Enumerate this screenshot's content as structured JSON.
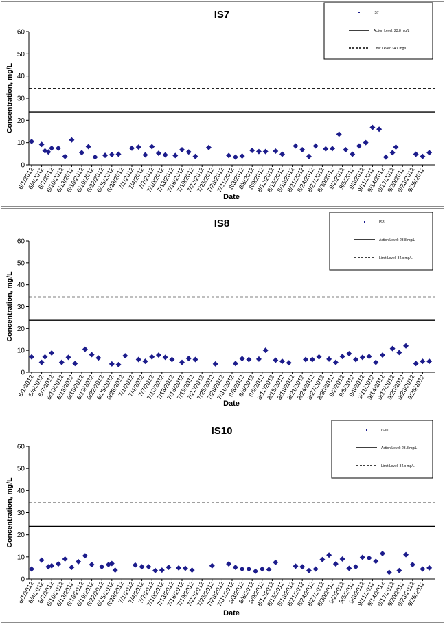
{
  "chart_data": [
    {
      "type": "scatter",
      "title": "IS7",
      "xlabel": "Date",
      "ylabel": "Concentration, mg/L",
      "ylim": [
        0,
        60
      ],
      "yticks": [
        "0",
        "10",
        "20",
        "30",
        "40",
        "50",
        "60"
      ],
      "grid": false,
      "legend_position": "top-right",
      "xtick_labels": [
        "6/1/2012",
        "6/4/2012",
        "6/7/2012",
        "6/10/2012",
        "6/13/2012",
        "6/16/2012",
        "6/19/2012",
        "6/22/2012",
        "6/25/2012",
        "6/28/2012",
        "7/1/2012",
        "7/4/2012",
        "7/7/2012",
        "7/10/2012",
        "7/13/2012",
        "7/16/2012",
        "7/19/2012",
        "7/22/2012",
        "7/25/2012",
        "7/28/2012",
        "7/31/2012",
        "8/3/2012",
        "8/6/2012",
        "8/9/2012",
        "8/12/2012",
        "8/15/2012",
        "8/18/2012",
        "8/21/2012",
        "8/24/2012",
        "8/27/2012",
        "8/30/2012",
        "9/2/2012",
        "9/5/2012",
        "9/8/2012",
        "9/11/2012",
        "9/14/2012",
        "9/17/2012",
        "9/20/2012",
        "9/23/2012",
        "9/26/2012"
      ],
      "series": [
        {
          "name": "IS7",
          "style": "marker",
          "color": "#1c1c8c",
          "x": [
            "2012-06-01",
            "2012-06-04",
            "2012-06-05",
            "2012-06-06",
            "2012-06-07",
            "2012-06-09",
            "2012-06-11",
            "2012-06-13",
            "2012-06-16",
            "2012-06-18",
            "2012-06-20",
            "2012-06-23",
            "2012-06-25",
            "2012-06-27",
            "2012-07-01",
            "2012-07-03",
            "2012-07-05",
            "2012-07-07",
            "2012-07-09",
            "2012-07-11",
            "2012-07-14",
            "2012-07-16",
            "2012-07-18",
            "2012-07-20",
            "2012-07-24",
            "2012-07-30",
            "2012-08-01",
            "2012-08-03",
            "2012-08-06",
            "2012-08-08",
            "2012-08-10",
            "2012-08-13",
            "2012-08-15",
            "2012-08-19",
            "2012-08-21",
            "2012-08-23",
            "2012-08-25",
            "2012-08-28",
            "2012-08-30",
            "2012-09-01",
            "2012-09-03",
            "2012-09-05",
            "2012-09-07",
            "2012-09-09",
            "2012-09-11",
            "2012-09-13",
            "2012-09-15",
            "2012-09-17",
            "2012-09-18",
            "2012-09-24",
            "2012-09-26",
            "2012-09-28"
          ],
          "y": [
            10.5,
            9.2,
            6.3,
            5.8,
            7.5,
            7.5,
            3.8,
            11.2,
            5.5,
            8.2,
            3.5,
            4.3,
            4.6,
            4.8,
            7.5,
            8.0,
            4.5,
            8.2,
            5.2,
            4.5,
            4.2,
            6.8,
            5.8,
            3.8,
            7.8,
            4.2,
            3.5,
            4.0,
            6.5,
            6.0,
            6.0,
            6.2,
            4.8,
            8.5,
            6.8,
            3.8,
            8.5,
            7.2,
            7.3,
            13.8,
            6.8,
            4.8,
            8.5,
            10.0,
            16.8,
            16.0,
            3.5,
            5.5,
            8.0,
            4.8,
            3.8,
            5.5
          ]
        },
        {
          "name": "Action Level: 23.8 mg/L",
          "style": "solid",
          "value": 23.8
        },
        {
          "name": "Limit Level: 34.x mg/L",
          "style": "dashed",
          "value": 34.4
        }
      ]
    },
    {
      "type": "scatter",
      "title": "IS8",
      "xlabel": "Date",
      "ylabel": "Concentration, mg/L",
      "ylim": [
        0,
        60
      ],
      "yticks": [
        "0",
        "10",
        "20",
        "30",
        "40",
        "50",
        "60"
      ],
      "grid": false,
      "legend_position": "top-right",
      "xtick_labels": [
        "6/1/2012",
        "6/4/2012",
        "6/7/2012",
        "6/10/2012",
        "6/13/2012",
        "6/16/2012",
        "6/19/2012",
        "6/22/2012",
        "6/25/2012",
        "6/28/2012",
        "7/1/2012",
        "7/4/2012",
        "7/7/2012",
        "7/10/2012",
        "7/13/2012",
        "7/16/2012",
        "7/19/2012",
        "7/22/2012",
        "7/25/2012",
        "7/28/2012",
        "7/31/2012",
        "8/3/2012",
        "8/6/2012",
        "8/9/2012",
        "8/12/2012",
        "8/15/2012",
        "8/18/2012",
        "8/21/2012",
        "8/24/2012",
        "8/27/2012",
        "8/30/2012",
        "9/2/2012",
        "9/5/2012",
        "9/8/2012",
        "9/11/2012",
        "9/14/2012",
        "9/17/2012",
        "9/20/2012",
        "9/23/2012",
        "9/26/2012"
      ],
      "series": [
        {
          "name": "IS8",
          "style": "marker",
          "color": "#1c1c8c",
          "x": [
            "2012-06-01",
            "2012-06-04",
            "2012-06-05",
            "2012-06-07",
            "2012-06-10",
            "2012-06-12",
            "2012-06-14",
            "2012-06-17",
            "2012-06-19",
            "2012-06-21",
            "2012-06-25",
            "2012-06-27",
            "2012-06-29",
            "2012-07-03",
            "2012-07-05",
            "2012-07-07",
            "2012-07-09",
            "2012-07-11",
            "2012-07-13",
            "2012-07-16",
            "2012-07-18",
            "2012-07-20",
            "2012-07-26",
            "2012-08-01",
            "2012-08-03",
            "2012-08-05",
            "2012-08-08",
            "2012-08-10",
            "2012-08-13",
            "2012-08-15",
            "2012-08-17",
            "2012-08-22",
            "2012-08-24",
            "2012-08-26",
            "2012-08-29",
            "2012-08-31",
            "2012-09-02",
            "2012-09-04",
            "2012-09-06",
            "2012-09-08",
            "2012-09-10",
            "2012-09-12",
            "2012-09-14",
            "2012-09-17",
            "2012-09-19",
            "2012-09-21",
            "2012-09-24",
            "2012-09-26",
            "2012-09-28"
          ],
          "y": [
            7.0,
            4.5,
            7.0,
            8.8,
            4.5,
            6.8,
            4.0,
            10.5,
            8.0,
            6.5,
            3.8,
            3.5,
            7.5,
            5.8,
            5.0,
            7.0,
            7.8,
            6.8,
            5.8,
            4.5,
            6.3,
            5.8,
            3.8,
            4.0,
            6.2,
            5.8,
            6.0,
            10.0,
            5.5,
            5.0,
            4.3,
            5.8,
            5.8,
            7.0,
            6.0,
            4.5,
            7.2,
            8.5,
            5.8,
            6.8,
            7.2,
            4.5,
            7.8,
            10.8,
            9.0,
            12.0,
            4.0,
            5.0,
            5.0
          ]
        },
        {
          "name": "Action Level: 23.8 mg/L",
          "style": "solid",
          "value": 23.8
        },
        {
          "name": "Limit Level: 34.x mg/L",
          "style": "dashed",
          "value": 34.4
        }
      ]
    },
    {
      "type": "scatter",
      "title": "IS10",
      "xlabel": "Date",
      "ylabel": "Concentration, mg/L",
      "ylim": [
        0,
        60
      ],
      "yticks": [
        "0",
        "10",
        "20",
        "30",
        "40",
        "50",
        "60"
      ],
      "grid": false,
      "legend_position": "top-right",
      "xtick_labels": [
        "6/1/2012",
        "6/4/2012",
        "6/7/2012",
        "6/10/2012",
        "6/13/2012",
        "6/16/2012",
        "6/19/2012",
        "6/22/2012",
        "6/25/2012",
        "6/28/2012",
        "7/1/2012",
        "7/4/2012",
        "7/7/2012",
        "7/10/2012",
        "7/13/2012",
        "7/16/2012",
        "7/19/2012",
        "7/22/2012",
        "7/25/2012",
        "7/28/2012",
        "7/31/2012",
        "8/3/2012",
        "8/6/2012",
        "8/9/2012",
        "8/12/2012",
        "8/15/2012",
        "8/18/2012",
        "8/21/2012",
        "8/24/2012",
        "8/27/2012",
        "8/30/2012",
        "9/2/2012",
        "9/5/2012",
        "9/8/2012",
        "9/11/2012",
        "9/14/2012",
        "9/17/2012",
        "9/20/2012",
        "9/23/2012",
        "9/26/2012"
      ],
      "series": [
        {
          "name": "IS10",
          "style": "marker",
          "color": "#1c1c8c",
          "x": [
            "2012-06-01",
            "2012-06-04",
            "2012-06-06",
            "2012-06-07",
            "2012-06-09",
            "2012-06-11",
            "2012-06-13",
            "2012-06-15",
            "2012-06-17",
            "2012-06-19",
            "2012-06-22",
            "2012-06-24",
            "2012-06-25",
            "2012-06-26",
            "2012-07-02",
            "2012-07-04",
            "2012-07-06",
            "2012-07-08",
            "2012-07-10",
            "2012-07-12",
            "2012-07-15",
            "2012-07-17",
            "2012-07-19",
            "2012-07-25",
            "2012-07-30",
            "2012-08-01",
            "2012-08-03",
            "2012-08-05",
            "2012-08-07",
            "2012-08-09",
            "2012-08-11",
            "2012-08-13",
            "2012-08-19",
            "2012-08-21",
            "2012-08-23",
            "2012-08-25",
            "2012-08-27",
            "2012-08-29",
            "2012-08-31",
            "2012-09-02",
            "2012-09-04",
            "2012-09-06",
            "2012-09-08",
            "2012-09-10",
            "2012-09-12",
            "2012-09-14",
            "2012-09-16",
            "2012-09-19",
            "2012-09-21",
            "2012-09-23",
            "2012-09-26",
            "2012-09-28"
          ],
          "y": [
            4.5,
            8.5,
            5.5,
            6.0,
            6.8,
            9.0,
            5.3,
            7.8,
            10.5,
            6.5,
            5.5,
            6.5,
            7.0,
            4.0,
            6.3,
            5.5,
            5.5,
            3.8,
            4.0,
            5.3,
            5.0,
            4.8,
            4.0,
            6.0,
            6.8,
            5.3,
            4.5,
            4.5,
            3.5,
            4.5,
            4.3,
            7.5,
            5.8,
            5.5,
            3.8,
            4.5,
            8.8,
            10.8,
            6.8,
            9.0,
            4.8,
            5.5,
            9.8,
            9.5,
            8.0,
            11.5,
            3.0,
            3.8,
            11.0,
            6.5,
            4.5,
            5.0
          ]
        },
        {
          "name": "Action Level: 23.8 mg/L",
          "style": "solid",
          "value": 23.8
        },
        {
          "name": "Limit Level: 34.x mg/L",
          "style": "dashed",
          "value": 34.4
        }
      ]
    }
  ]
}
